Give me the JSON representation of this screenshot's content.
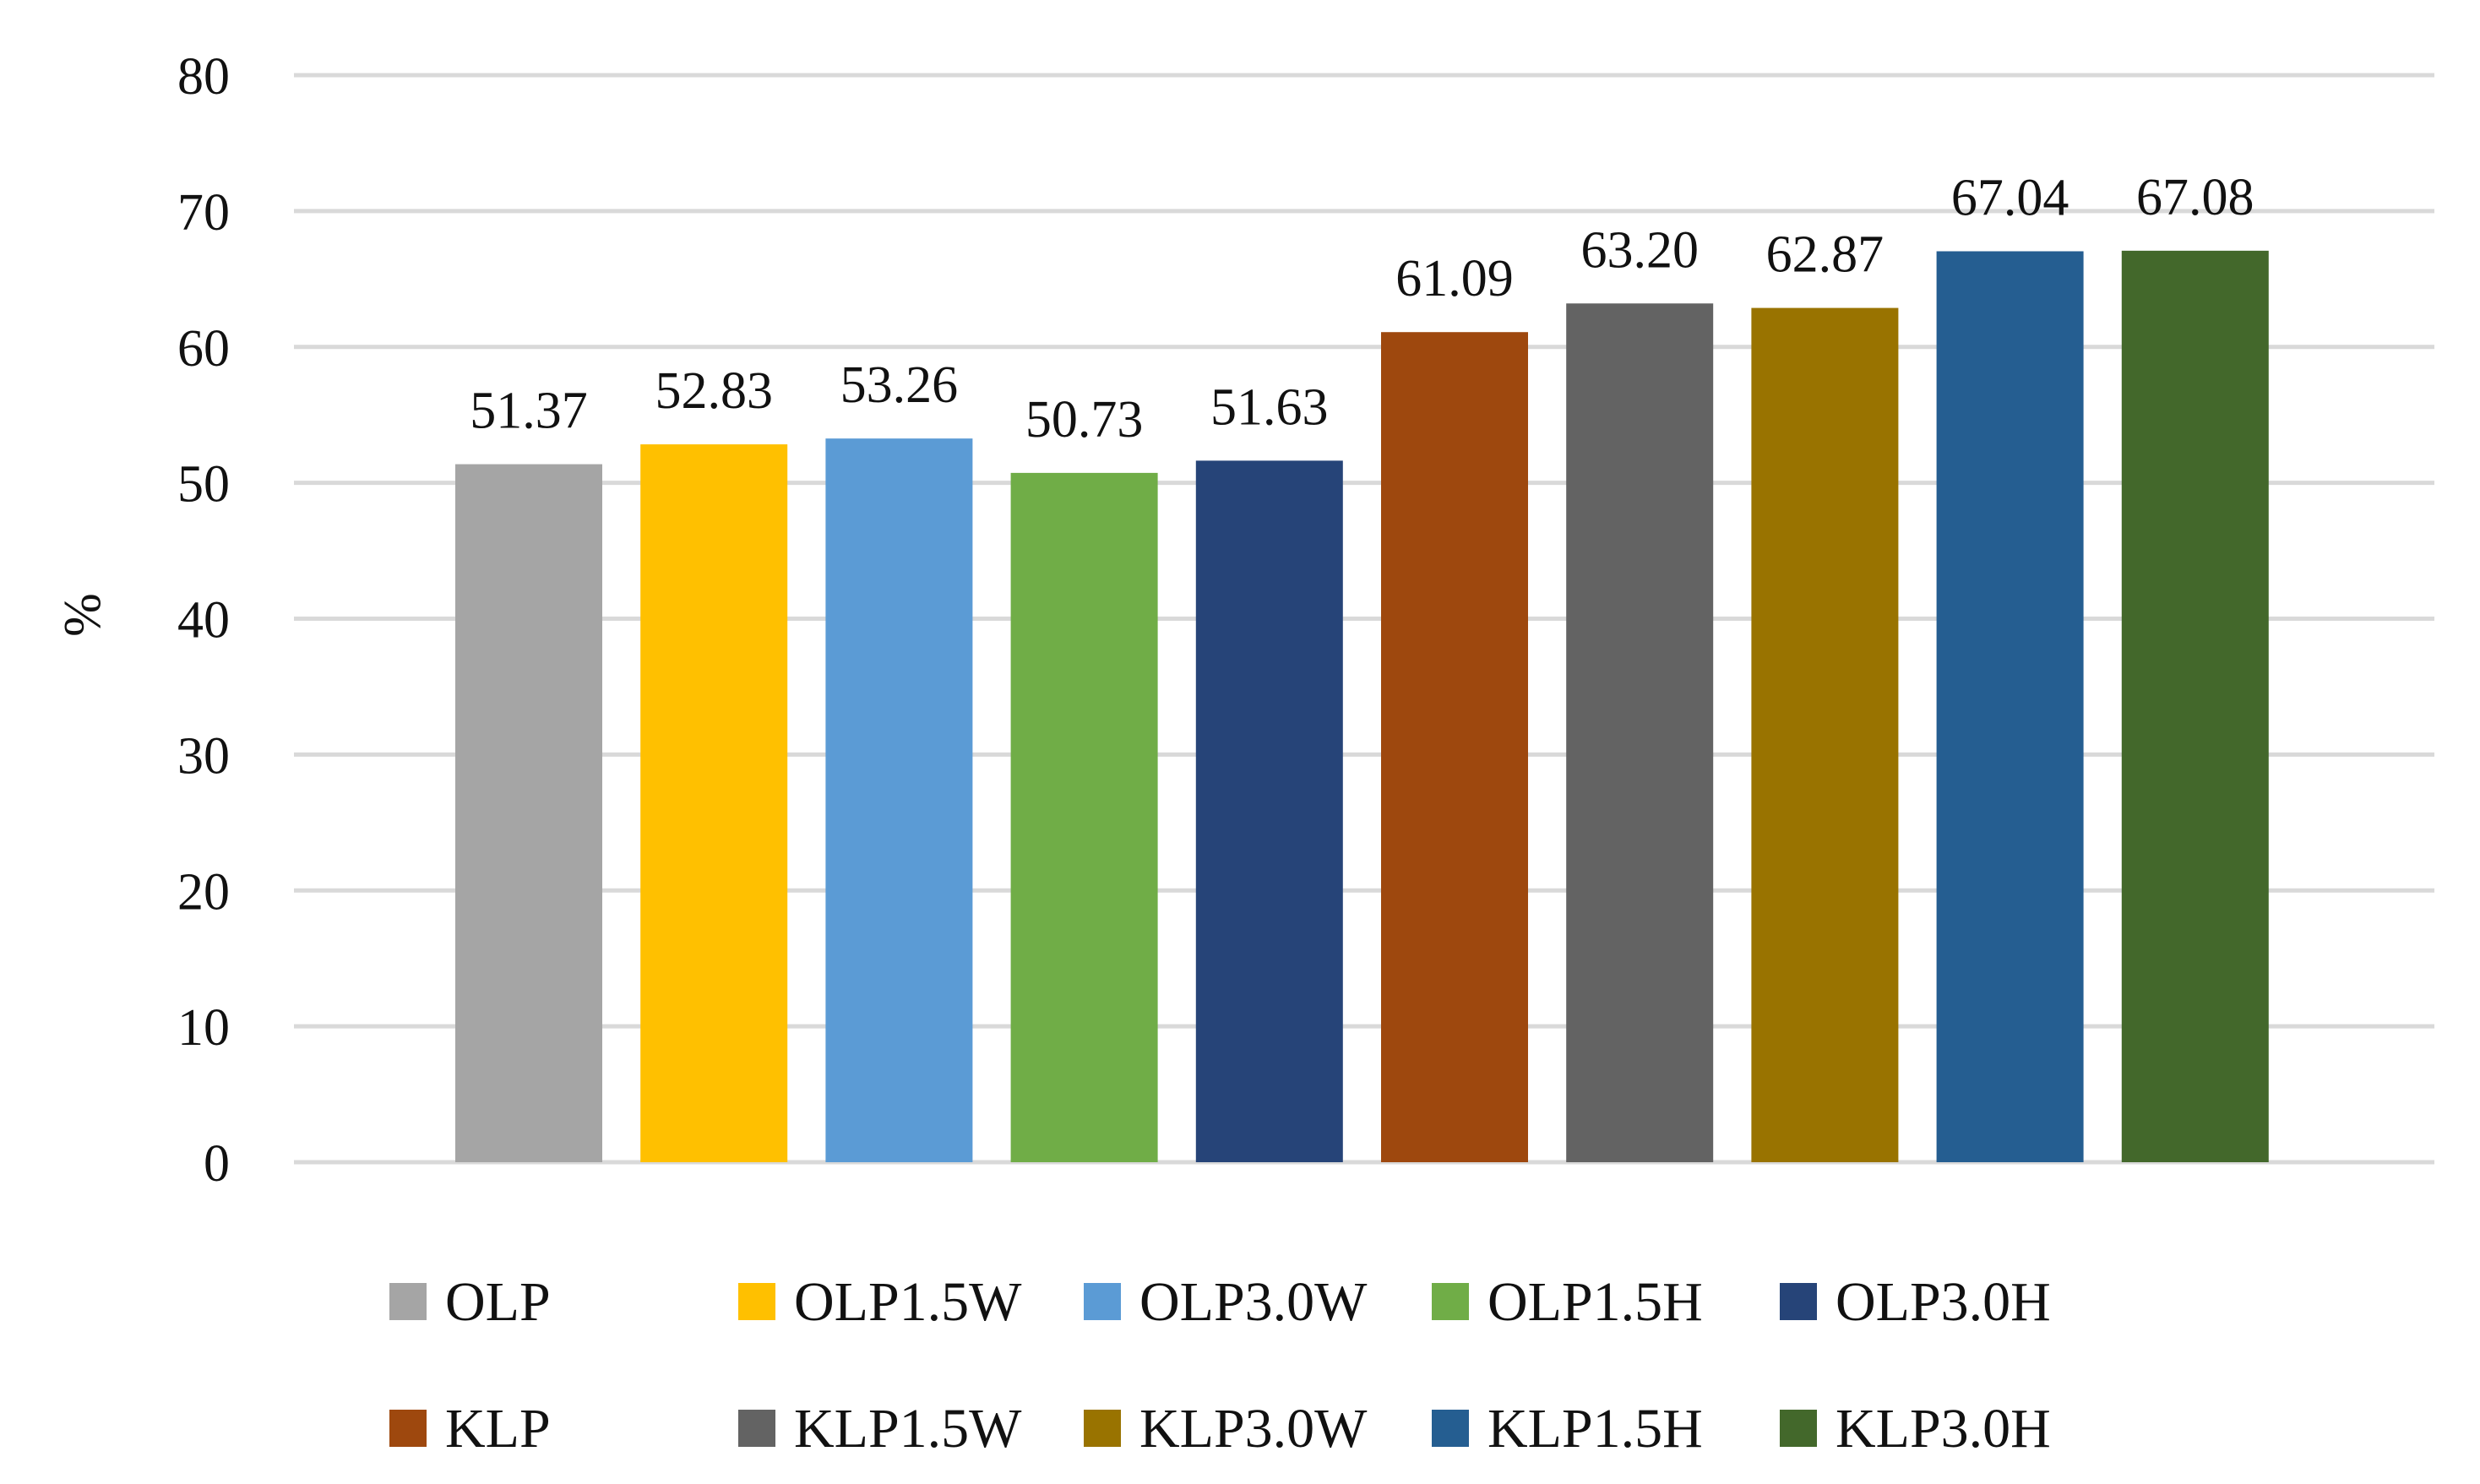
{
  "chart_data": {
    "type": "bar",
    "title": "",
    "xlabel": "",
    "ylabel": "%",
    "ylim": [
      0,
      80
    ],
    "yticks": [
      0,
      10,
      20,
      30,
      40,
      50,
      60,
      70,
      80
    ],
    "grid": true,
    "legend_position": "bottom",
    "categories": [
      "OLP",
      "OLP1.5W",
      "OLP3.0W",
      "OLP1.5H",
      "OLP3.0H",
      "KLP",
      "KLP1.5W",
      "KLP3.0W",
      "KLP1.5H",
      "KLP3.0H"
    ],
    "values": [
      51.37,
      52.83,
      53.26,
      50.73,
      51.63,
      61.09,
      63.2,
      62.87,
      67.04,
      67.08
    ],
    "value_labels": [
      "51.37",
      "52.83",
      "53.26",
      "50.73",
      "51.63",
      "61.09",
      "63.20",
      "62.87",
      "67.04",
      "67.08"
    ],
    "colors": [
      "#a5a5a5",
      "#ffc000",
      "#5b9bd5",
      "#70ad47",
      "#264478",
      "#9e480e",
      "#636363",
      "#997300",
      "#255e91",
      "#43682b"
    ]
  }
}
